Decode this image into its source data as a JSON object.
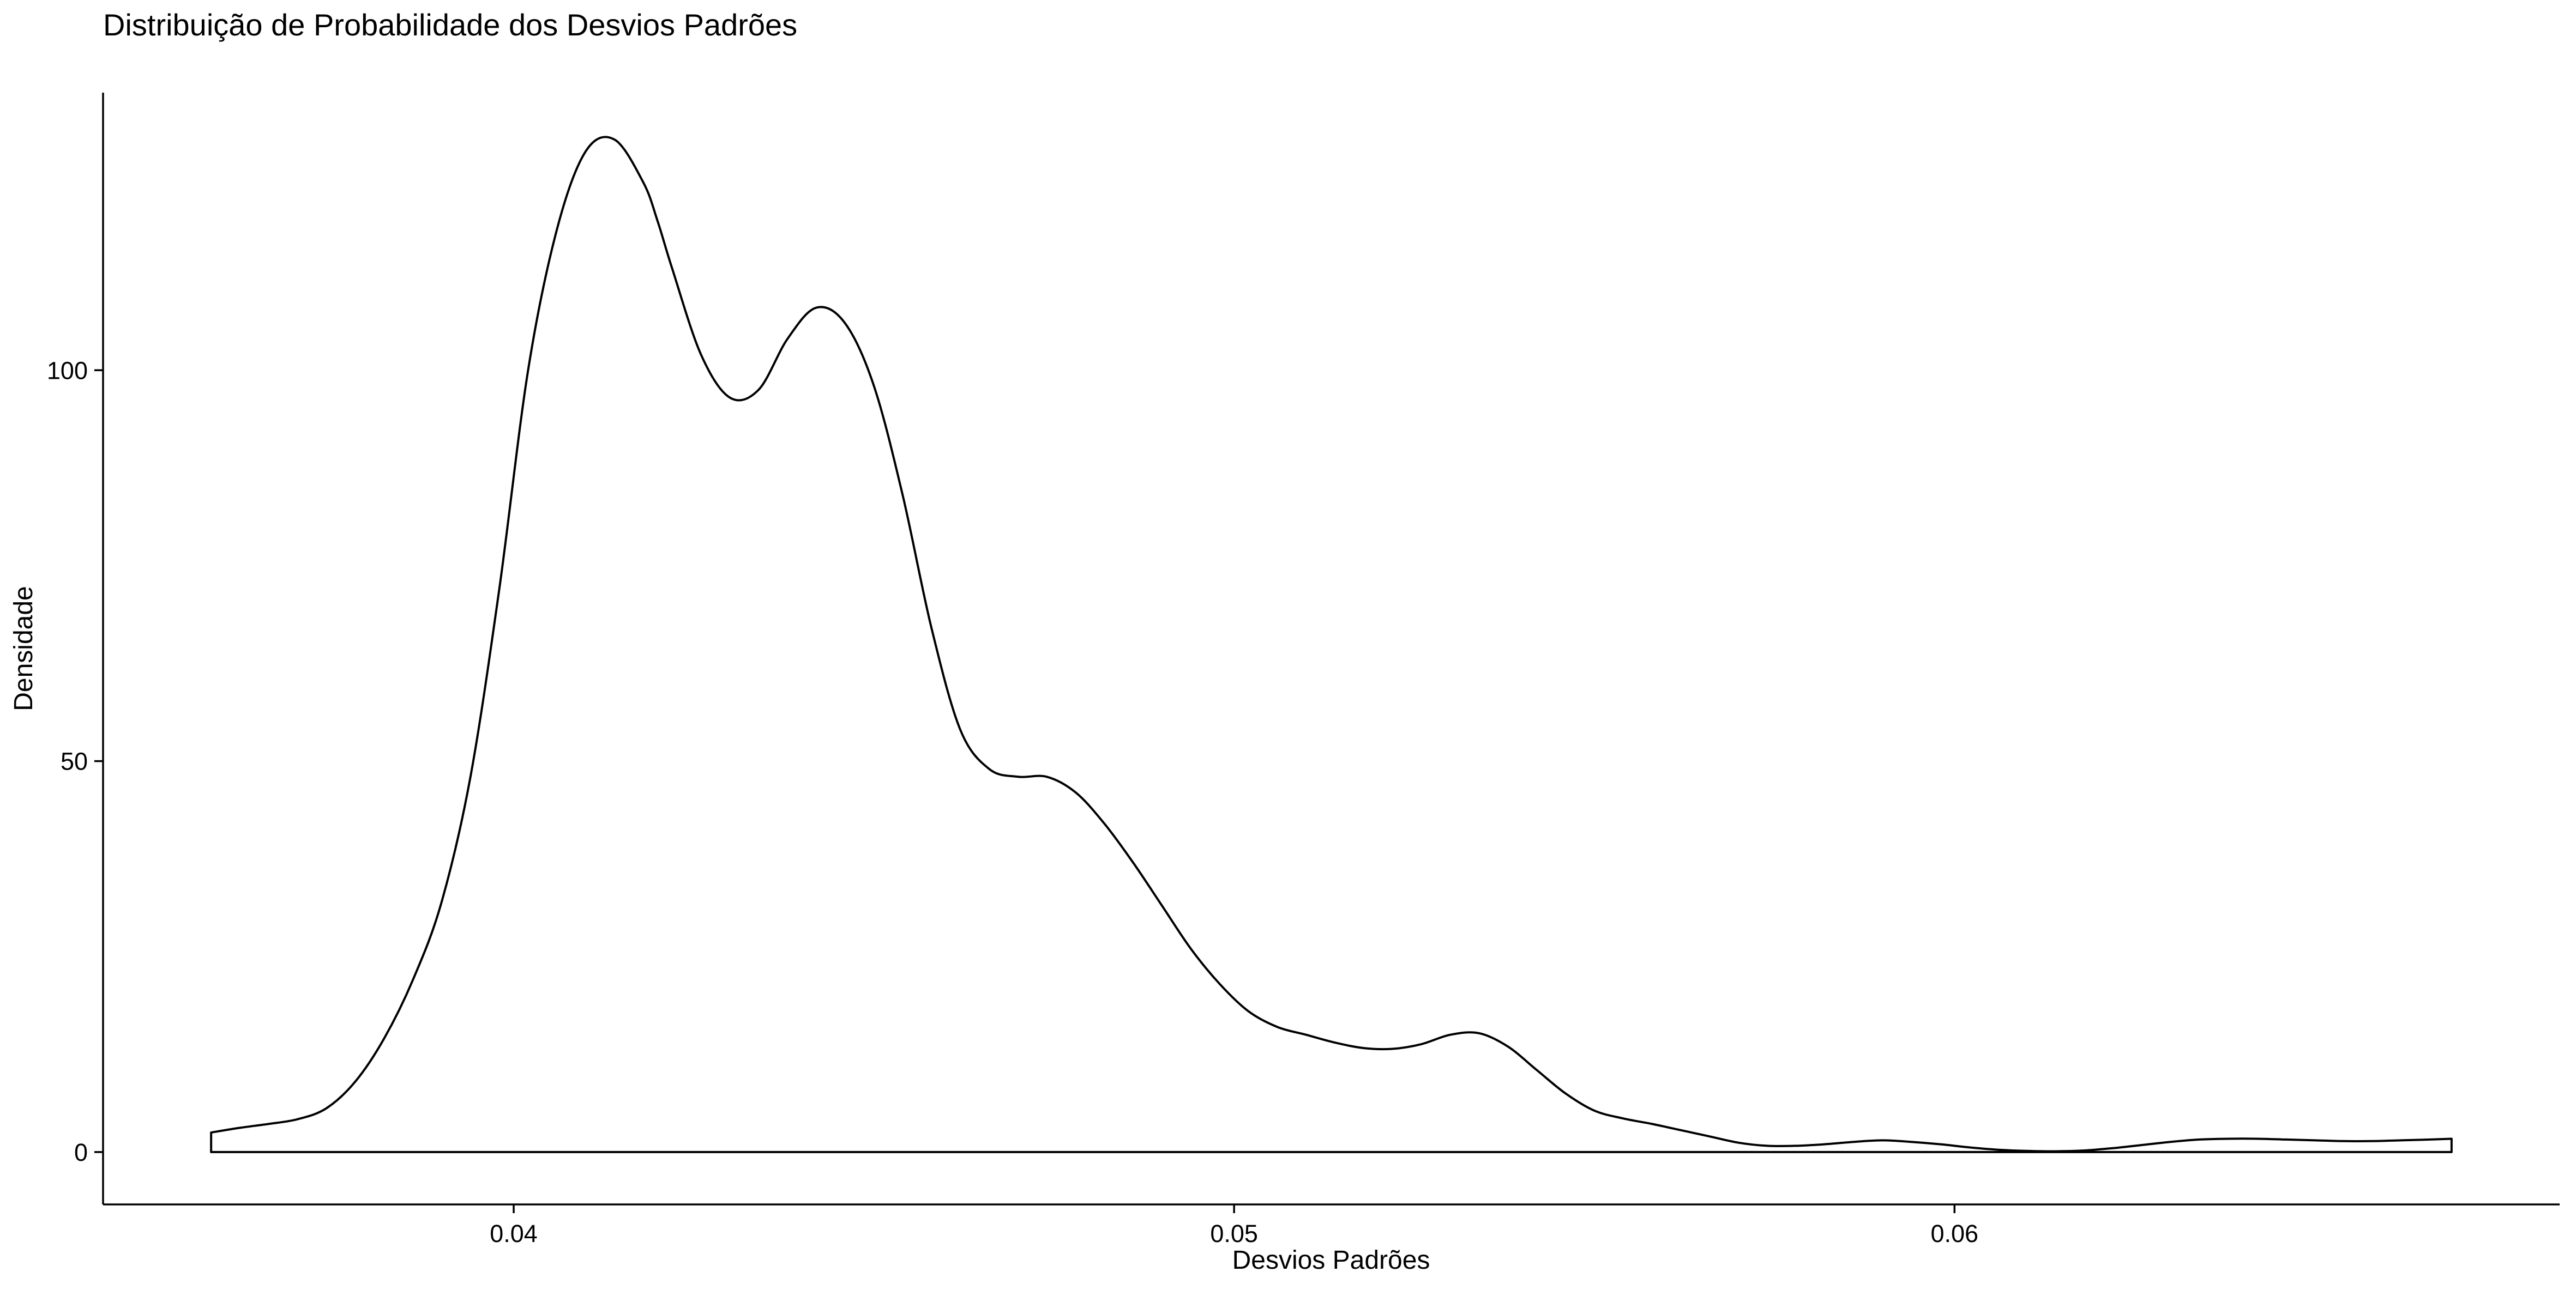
{
  "chart_data": {
    "type": "area",
    "title": "Distribuição de Probabilidade dos Desvios Padrões",
    "xlabel": "Desvios Padrões",
    "ylabel": "Densidade",
    "xlim": [
      0.0343,
      0.0684
    ],
    "ylim": [
      -6.7,
      135.5
    ],
    "x_ticks": [
      0.04,
      0.05,
      0.06
    ],
    "x_tick_labels": [
      "0.04",
      "0.05",
      "0.06"
    ],
    "y_ticks": [
      0,
      50,
      100
    ],
    "y_tick_labels": [
      "0",
      "50",
      "100"
    ],
    "grid": false,
    "legend": "none",
    "line_color": "#000000",
    "fill_color": "#ffffff",
    "series": [
      {
        "x": [
          0.0358,
          0.0362,
          0.0366,
          0.037,
          0.0374,
          0.0378,
          0.0382,
          0.0386,
          0.039,
          0.0394,
          0.0398,
          0.0402,
          0.0406,
          0.041,
          0.0414,
          0.0418,
          0.042,
          0.0422,
          0.0426,
          0.043,
          0.0434,
          0.0438,
          0.0442,
          0.0446,
          0.045,
          0.0454,
          0.0458,
          0.0462,
          0.0466,
          0.047,
          0.0474,
          0.0478,
          0.0482,
          0.0486,
          0.049,
          0.0494,
          0.0498,
          0.0502,
          0.0506,
          0.051,
          0.0514,
          0.0518,
          0.0522,
          0.0526,
          0.053,
          0.0534,
          0.0538,
          0.0542,
          0.0546,
          0.055,
          0.0554,
          0.0558,
          0.0562,
          0.0566,
          0.057,
          0.0574,
          0.0578,
          0.0582,
          0.0586,
          0.059,
          0.0594,
          0.0598,
          0.0602,
          0.0606,
          0.061,
          0.0614,
          0.0618,
          0.0622,
          0.0626,
          0.063,
          0.0634,
          0.0638,
          0.0642,
          0.0646,
          0.065,
          0.0654,
          0.0658,
          0.0662,
          0.0666,
          0.0669
        ],
        "y": [
          2.5,
          3.1,
          3.6,
          4.2,
          5.6,
          9.0,
          14.5,
          22.0,
          32.0,
          48.0,
          72.0,
          100.0,
          118.0,
          128.0,
          129.5,
          124.0,
          119.0,
          113.0,
          102.0,
          96.5,
          97.5,
          104.0,
          108.0,
          106.0,
          98.0,
          84.0,
          67.0,
          54.0,
          49.0,
          48.0,
          48.0,
          46.0,
          42.0,
          37.0,
          31.5,
          26.0,
          21.5,
          18.0,
          16.0,
          15.0,
          14.0,
          13.3,
          13.2,
          13.8,
          15.0,
          15.2,
          13.5,
          10.5,
          7.5,
          5.3,
          4.3,
          3.6,
          2.8,
          2.0,
          1.2,
          0.8,
          0.8,
          1.0,
          1.3,
          1.5,
          1.3,
          1.0,
          0.6,
          0.3,
          0.15,
          0.1,
          0.2,
          0.5,
          0.9,
          1.3,
          1.6,
          1.7,
          1.7,
          1.6,
          1.5,
          1.4,
          1.4,
          1.5,
          1.6,
          1.7
        ]
      }
    ]
  }
}
